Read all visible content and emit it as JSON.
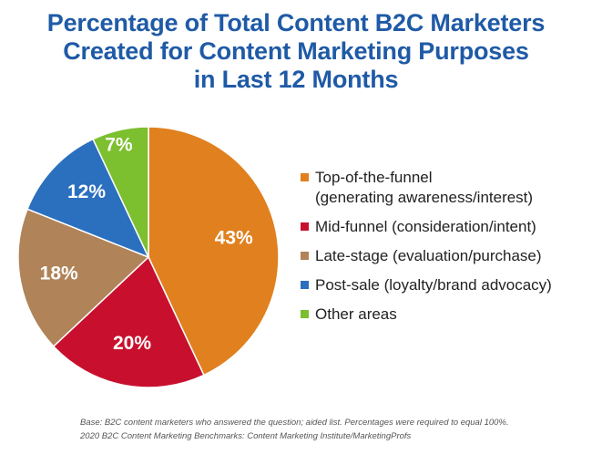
{
  "title_lines": [
    "Percentage of Total Content B2C Marketers",
    "Created for Content Marketing Purposes",
    "in Last 12 Months"
  ],
  "chart_data": {
    "type": "pie",
    "title": "Percentage of Total Content B2C Marketers Created for Content Marketing Purposes in Last 12 Months",
    "slices": [
      {
        "label": "Top-of-the-funnel\n(generating awareness/interest)",
        "value": 43,
        "value_label": "43%",
        "color": "#e0801e"
      },
      {
        "label": "Mid-funnel (consideration/intent)",
        "value": 20,
        "value_label": "20%",
        "color": "#c8102e"
      },
      {
        "label": "Late-stage (evaluation/purchase)",
        "value": 18,
        "value_label": "18%",
        "color": "#b08358"
      },
      {
        "label": "Post-sale (loyalty/brand advocacy)",
        "value": 12,
        "value_label": "12%",
        "color": "#2b6fbf"
      },
      {
        "label": "Other areas",
        "value": 7,
        "value_label": "7%",
        "color": "#7cbf2f"
      }
    ],
    "legend_position": "right"
  },
  "footnote_lines": [
    "Base: B2C content marketers who answered the question; aided list. Percentages were required to equal 100%.",
    "2020 B2C Content Marketing Benchmarks: Content Marketing Institute/MarketingProfs"
  ]
}
